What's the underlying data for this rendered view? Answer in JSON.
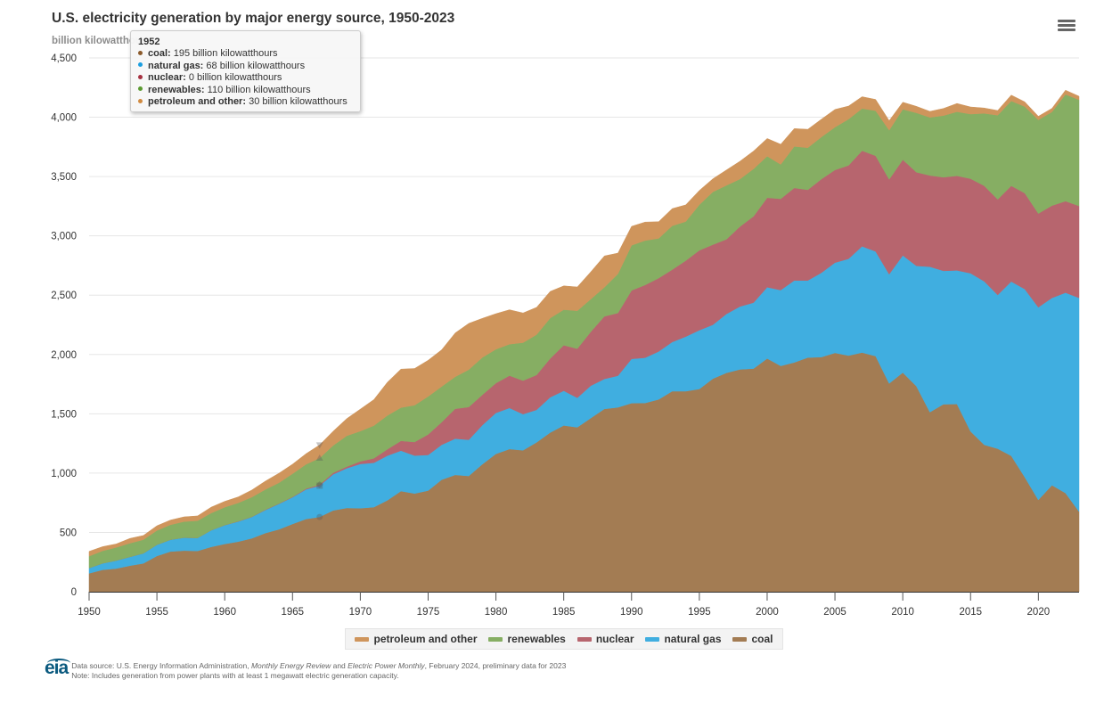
{
  "header": {
    "title": "U.S. electricity generation by major energy source, 1950-2023",
    "unit_label": "billion kilowatthours",
    "menu_icon": "hamburger-menu-icon"
  },
  "colors": {
    "coal": "#a37c53",
    "natural_gas": "#40aee0",
    "nuclear": "#b7656e",
    "renewables": "#86ae63",
    "petroleum_and_other": "#cf955c"
  },
  "tooltip": {
    "year": "1952",
    "rows": [
      {
        "label": "coal:",
        "value": "195 billion kilowatthours",
        "color": "#8b5a2b"
      },
      {
        "label": "natural gas:",
        "value": "68 billion kilowatthours",
        "color": "#1a9ee0"
      },
      {
        "label": "nuclear:",
        "value": "0 billion kilowatthours",
        "color": "#a63040"
      },
      {
        "label": "renewables:",
        "value": "110 billion kilowatthours",
        "color": "#5a9a30"
      },
      {
        "label": "petroleum and other:",
        "value": "30 billion kilowatthours",
        "color": "#d08a40"
      }
    ]
  },
  "legend": [
    {
      "label": "petroleum and other",
      "key": "petroleum_and_other"
    },
    {
      "label": "renewables",
      "key": "renewables"
    },
    {
      "label": "nuclear",
      "key": "nuclear"
    },
    {
      "label": "natural gas",
      "key": "natural_gas"
    },
    {
      "label": "coal",
      "key": "coal"
    }
  ],
  "footer": {
    "logo_text": "eia",
    "source_prefix": "Data source: U.S. Energy Information Administration, ",
    "source_pub1": "Monthly Energy Review",
    "source_and": " and ",
    "source_pub2": "Electric Power Monthly",
    "source_suffix": ", February 2024, preliminary data for 2023",
    "note": "Note: Includes generation from power plants with at least 1 megawatt electric generation capacity."
  },
  "chart_data": {
    "type": "area",
    "stacked": true,
    "title": "U.S. electricity generation by major energy source, 1950-2023",
    "ylabel": "billion kilowatthours",
    "xlabel": "",
    "xlim": [
      1950,
      2023
    ],
    "ylim": [
      0,
      4500
    ],
    "yticks": [
      0,
      500,
      1000,
      1500,
      2000,
      2500,
      3000,
      3500,
      4000,
      4500
    ],
    "ytick_labels": [
      "0",
      "500",
      "1,000",
      "1,500",
      "2,000",
      "2,500",
      "3,000",
      "3,500",
      "4,000",
      "4,500"
    ],
    "xticks": [
      1950,
      1955,
      1960,
      1965,
      1970,
      1975,
      1980,
      1985,
      1990,
      1995,
      2000,
      2005,
      2010,
      2015,
      2020
    ],
    "grid": true,
    "legend_position": "bottom-center",
    "hover_year": 1967,
    "x": [
      1950,
      1951,
      1952,
      1953,
      1954,
      1955,
      1956,
      1957,
      1958,
      1959,
      1960,
      1961,
      1962,
      1963,
      1964,
      1965,
      1966,
      1967,
      1968,
      1969,
      1970,
      1971,
      1972,
      1973,
      1974,
      1975,
      1976,
      1977,
      1978,
      1979,
      1980,
      1981,
      1982,
      1983,
      1984,
      1985,
      1986,
      1987,
      1988,
      1989,
      1990,
      1991,
      1992,
      1993,
      1994,
      1995,
      1996,
      1997,
      1998,
      1999,
      2000,
      2001,
      2002,
      2003,
      2004,
      2005,
      2006,
      2007,
      2008,
      2009,
      2010,
      2011,
      2012,
      2013,
      2014,
      2015,
      2016,
      2017,
      2018,
      2019,
      2020,
      2021,
      2022,
      2023
    ],
    "series": [
      {
        "name": "coal",
        "values": [
          155,
          185,
          195,
          219,
          239,
          301,
          339,
          346,
          344,
          378,
          403,
          422,
          450,
          494,
          526,
          571,
          613,
          630,
          685,
          706,
          704,
          713,
          771,
          848,
          828,
          853,
          944,
          985,
          976,
          1075,
          1162,
          1203,
          1192,
          1259,
          1342,
          1402,
          1386,
          1464,
          1541,
          1554,
          1590,
          1591,
          1621,
          1690,
          1690,
          1709,
          1796,
          1845,
          1874,
          1881,
          1966,
          1904,
          1933,
          1974,
          1978,
          2013,
          1991,
          2016,
          1986,
          1756,
          1847,
          1733,
          1514,
          1581,
          1582,
          1352,
          1239,
          1206,
          1146,
          965,
          774,
          898,
          832,
          675
        ]
      },
      {
        "name": "natural gas",
        "values": [
          45,
          55,
          68,
          75,
          85,
          95,
          100,
          110,
          110,
          140,
          158,
          170,
          180,
          195,
          215,
          225,
          250,
          264,
          305,
          335,
          373,
          374,
          376,
          341,
          320,
          300,
          295,
          306,
          305,
          330,
          346,
          346,
          305,
          274,
          297,
          292,
          249,
          273,
          253,
          267,
          373,
          382,
          404,
          415,
          461,
          496,
          455,
          497,
          531,
          556,
          601,
          639,
          691,
          650,
          711,
          761,
          816,
          896,
          883,
          921,
          988,
          1014,
          1226,
          1124,
          1127,
          1333,
          1378,
          1296,
          1469,
          1586,
          1624,
          1579,
          1689,
          1802
        ]
      },
      {
        "name": "nuclear",
        "values": [
          0,
          0,
          0,
          0,
          0,
          0,
          0,
          0,
          0,
          0,
          1,
          2,
          2,
          3,
          3,
          4,
          6,
          8,
          13,
          14,
          22,
          38,
          54,
          83,
          114,
          173,
          191,
          251,
          276,
          255,
          251,
          273,
          283,
          294,
          328,
          384,
          414,
          455,
          527,
          529,
          577,
          613,
          619,
          610,
          640,
          673,
          675,
          629,
          674,
          728,
          754,
          769,
          780,
          764,
          789,
          782,
          787,
          806,
          806,
          799,
          807,
          790,
          769,
          789,
          797,
          797,
          806,
          805,
          807,
          809,
          790,
          778,
          772,
          775
        ]
      },
      {
        "name": "renewables",
        "values": [
          100,
          105,
          110,
          115,
          115,
          120,
          125,
          135,
          145,
          145,
          150,
          155,
          165,
          170,
          175,
          195,
          205,
          225,
          230,
          260,
          255,
          275,
          285,
          280,
          310,
          320,
          300,
          270,
          315,
          315,
          285,
          265,
          320,
          340,
          340,
          300,
          320,
          275,
          245,
          330,
          380,
          375,
          335,
          370,
          330,
          385,
          445,
          455,
          400,
          400,
          350,
          290,
          350,
          355,
          355,
          360,
          390,
          355,
          380,
          415,
          425,
          500,
          490,
          520,
          540,
          545,
          610,
          710,
          715,
          730,
          790,
          790,
          900,
          895
        ]
      },
      {
        "name": "petroleum and other",
        "values": [
          40,
          35,
          30,
          40,
          35,
          40,
          40,
          40,
          40,
          50,
          50,
          50,
          60,
          70,
          80,
          80,
          90,
          110,
          120,
          145,
          185,
          220,
          280,
          325,
          310,
          305,
          310,
          370,
          390,
          330,
          300,
          290,
          250,
          230,
          225,
          200,
          200,
          230,
          265,
          175,
          160,
          155,
          140,
          145,
          140,
          120,
          110,
          130,
          150,
          150,
          150,
          170,
          150,
          155,
          150,
          150,
          110,
          100,
          95,
          80,
          60,
          55,
          50,
          60,
          70,
          60,
          45,
          40,
          50,
          40,
          30,
          30,
          35,
          30
        ]
      }
    ]
  }
}
